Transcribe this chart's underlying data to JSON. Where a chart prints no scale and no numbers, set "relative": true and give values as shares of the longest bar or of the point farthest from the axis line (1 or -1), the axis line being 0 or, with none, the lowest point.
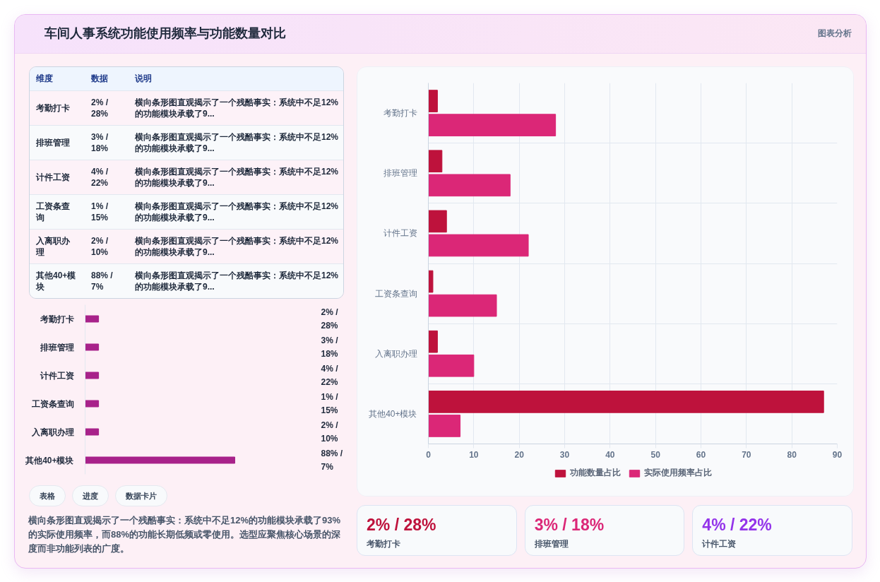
{
  "chart_data": [
    {
      "type": "other",
      "title": "车间人事系统功能使用频率与功能数量对比",
      "subtitle": "图表分析"
    },
    {
      "type": "other",
      "categories": [
        "维度",
        "数据",
        "说明"
      ],
      "cell_labels": [
        [
          "考勤打卡",
          "2% / 28%",
          "横向条形图直观揭示了一个残酷事实：系统中不足12%的功能模块承载了9..."
        ],
        [
          "排班管理",
          "3% / 18%",
          "横向条形图直观揭示了一个残酷事实：系统中不足12%的功能模块承载了9..."
        ],
        [
          "计件工资",
          "4% / 22%",
          "横向条形图直观揭示了一个残酷事实：系统中不足12%的功能模块承载了9..."
        ],
        [
          "工资条查询",
          "1% / 15%",
          "横向条形图直观揭示了一个残酷事实：系统中不足12%的功能模块承载了9..."
        ],
        [
          "入离职办理",
          "2% / 10%",
          "横向条形图直观揭示了一个残酷事实：系统中不足12%的功能模块承载了9..."
        ],
        [
          "其他40+模块",
          "88% / 7%",
          "横向条形图直观揭示了一个残酷事实：系统中不足12%的功能模块承载了9..."
        ]
      ]
    },
    {
      "type": "bar",
      "orientation": "horizontal",
      "relative": true,
      "categories": [
        "考勤打卡",
        "排班管理",
        "计件工资",
        "工资条查询",
        "入离职办理",
        "其他40+模块"
      ],
      "values": [
        0.09,
        0.09,
        0.09,
        0.09,
        0.09,
        1
      ],
      "color": "#a8228a",
      "annotations": [
        "2% / 28%",
        "3% / 18%",
        "4% / 22%",
        "1% / 15%",
        "2% / 10%",
        "88% / 7%"
      ]
    },
    {
      "type": "other",
      "annotations": [
        "表格",
        "进度",
        "数据卡片"
      ]
    },
    {
      "type": "other",
      "annotations": [
        "横向条形图直观揭示了一个残酷事实：系统中不足12%的功能模块承载了93%的实际使用频率，而88%的功能长期低频或零使用。选型应聚焦核心场景的深度而非功能列表的广度。"
      ]
    },
    {
      "type": "bar",
      "orientation": "horizontal",
      "categories": [
        "考勤打卡",
        "排班管理",
        "计件工资",
        "工资条查询",
        "入离职办理",
        "其他40+模块"
      ],
      "series": [
        {
          "name": "功能数量占比",
          "color": "#be123c",
          "values": [
            2,
            3,
            4,
            1,
            2,
            87
          ]
        },
        {
          "name": "实际使用频率占比",
          "color": "#db2777",
          "values": [
            28,
            18,
            22,
            15,
            10,
            7
          ]
        }
      ],
      "xlim": [
        0,
        90
      ],
      "xticks": [
        0,
        10,
        20,
        30,
        40,
        50,
        60,
        70,
        80,
        90
      ],
      "grid": true,
      "legend": "bottom"
    },
    {
      "type": "other",
      "categories": [
        "考勤打卡",
        "排班管理",
        "计件工资"
      ],
      "value_labels": [
        "2% / 28%",
        "3% / 18%",
        "4% / 22%"
      ]
    }
  ]
}
